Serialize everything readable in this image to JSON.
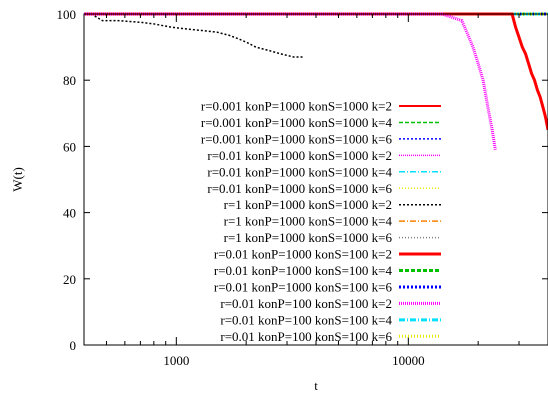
{
  "chart_data": {
    "type": "line",
    "title": "",
    "xlabel": "t",
    "ylabel": "W(t)",
    "xscale": "log",
    "xlim": [
      400,
      40000
    ],
    "ylim": [
      0,
      100
    ],
    "x_ticks": [
      1000,
      10000
    ],
    "x_tick_labels": [
      "1000",
      "10000"
    ],
    "y_ticks": [
      0,
      20,
      40,
      60,
      80,
      100
    ],
    "y_tick_labels": [
      "0",
      "20",
      "40",
      "60",
      "80",
      "100"
    ],
    "grid": false,
    "legend_position": "center",
    "series": [
      {
        "name": "r=0.001 konP=1000 konS=1000 k=2",
        "color": "#ff0000",
        "dash": "",
        "width": 2,
        "x": [
          400,
          40000
        ],
        "y": [
          100,
          100
        ]
      },
      {
        "name": "r=0.001 konP=1000 konS=1000 k=4",
        "color": "#00c000",
        "dash": "4,2",
        "width": 1.5,
        "x": [
          400,
          40000
        ],
        "y": [
          100,
          100
        ]
      },
      {
        "name": "r=0.001 konP=1000 konS=1000 k=6",
        "color": "#0000ff",
        "dash": "2,2",
        "width": 1.5,
        "x": [
          400,
          40000
        ],
        "y": [
          100,
          100
        ]
      },
      {
        "name": "r=0.01 konP=1000 konS=1000 k=2",
        "color": "#ff00ff",
        "dash": "1,1",
        "width": 1.5,
        "x": [
          400,
          14000
        ],
        "y": [
          100,
          100
        ]
      },
      {
        "name": "r=0.01 konP=1000 konS=1000 k=4",
        "color": "#00e0ff",
        "dash": "6,2,1,2",
        "width": 1.5,
        "x": [
          400,
          40000
        ],
        "y": [
          100,
          100
        ]
      },
      {
        "name": "r=0.01 konP=1000 konS=1000 k=6",
        "color": "#e8e800",
        "dash": "1,2",
        "width": 1.5,
        "x": [
          400,
          40000
        ],
        "y": [
          100,
          100
        ]
      },
      {
        "name": "r=1 konP=1000 konS=1000 k=2",
        "color": "#000000",
        "dash": "2,2",
        "width": 1.5,
        "x": [
          430,
          480,
          560,
          700,
          800,
          950,
          1100,
          1300,
          1500,
          1700,
          1850,
          2000,
          2200,
          2500,
          2800,
          3200,
          3500
        ],
        "y": [
          100,
          98,
          98,
          97.5,
          97,
          96,
          95.5,
          95,
          94.5,
          93.5,
          92.5,
          91.5,
          90,
          89,
          88,
          87,
          87
        ]
      },
      {
        "name": "r=1 konP=1000 konS=1000 k=4",
        "color": "#ff8000",
        "dash": "6,2,1,2",
        "width": 1.5,
        "x": [
          400,
          40000
        ],
        "y": [
          100,
          100
        ]
      },
      {
        "name": "r=1 konP=1000 konS=1000 k=6",
        "color": "#808080",
        "dash": "1,2",
        "width": 1.5,
        "x": [
          400,
          40000
        ],
        "y": [
          100,
          100
        ]
      },
      {
        "name": "r=0.01 konP=1000 konS=100 k=2",
        "color": "#ff0000",
        "dash": "",
        "width": 3,
        "x": [
          400,
          28000,
          29000,
          30000,
          31000,
          32000,
          33000,
          34000,
          35000,
          36000,
          37000,
          38000,
          39000,
          40000
        ],
        "y": [
          100,
          100,
          96,
          93,
          90,
          88,
          85,
          82,
          80,
          77,
          75,
          72,
          69,
          65
        ]
      },
      {
        "name": "r=0.01 konP=1000 konS=100 k=4",
        "color": "#00c000",
        "dash": "4,2",
        "width": 3,
        "x": [
          400,
          40000
        ],
        "y": [
          100,
          100
        ]
      },
      {
        "name": "r=0.01 konP=1000 konS=100 k=6",
        "color": "#0000ff",
        "dash": "2,2",
        "width": 3,
        "x": [
          400,
          40000
        ],
        "y": [
          100,
          100
        ]
      },
      {
        "name": "r=0.01 konP=100 konS=100 k=2",
        "color": "#ff00ff",
        "dash": "1,1",
        "width": 3,
        "x": [
          400,
          14000,
          17000,
          18000,
          19000,
          20000,
          21000,
          22000,
          23000,
          23700
        ],
        "y": [
          100,
          100,
          98,
          94,
          90,
          85,
          80,
          72,
          65,
          59
        ]
      },
      {
        "name": "r=0.01 konP=100 konS=100 k=4",
        "color": "#00e0ff",
        "dash": "6,2,1,2",
        "width": 3,
        "x": [
          400,
          40000
        ],
        "y": [
          100,
          100
        ]
      },
      {
        "name": "r=0.01 konP=100 konS=100 k=6",
        "color": "#e8e800",
        "dash": "1,2",
        "width": 3,
        "x": [
          400,
          40000
        ],
        "y": [
          100,
          100
        ]
      }
    ]
  }
}
